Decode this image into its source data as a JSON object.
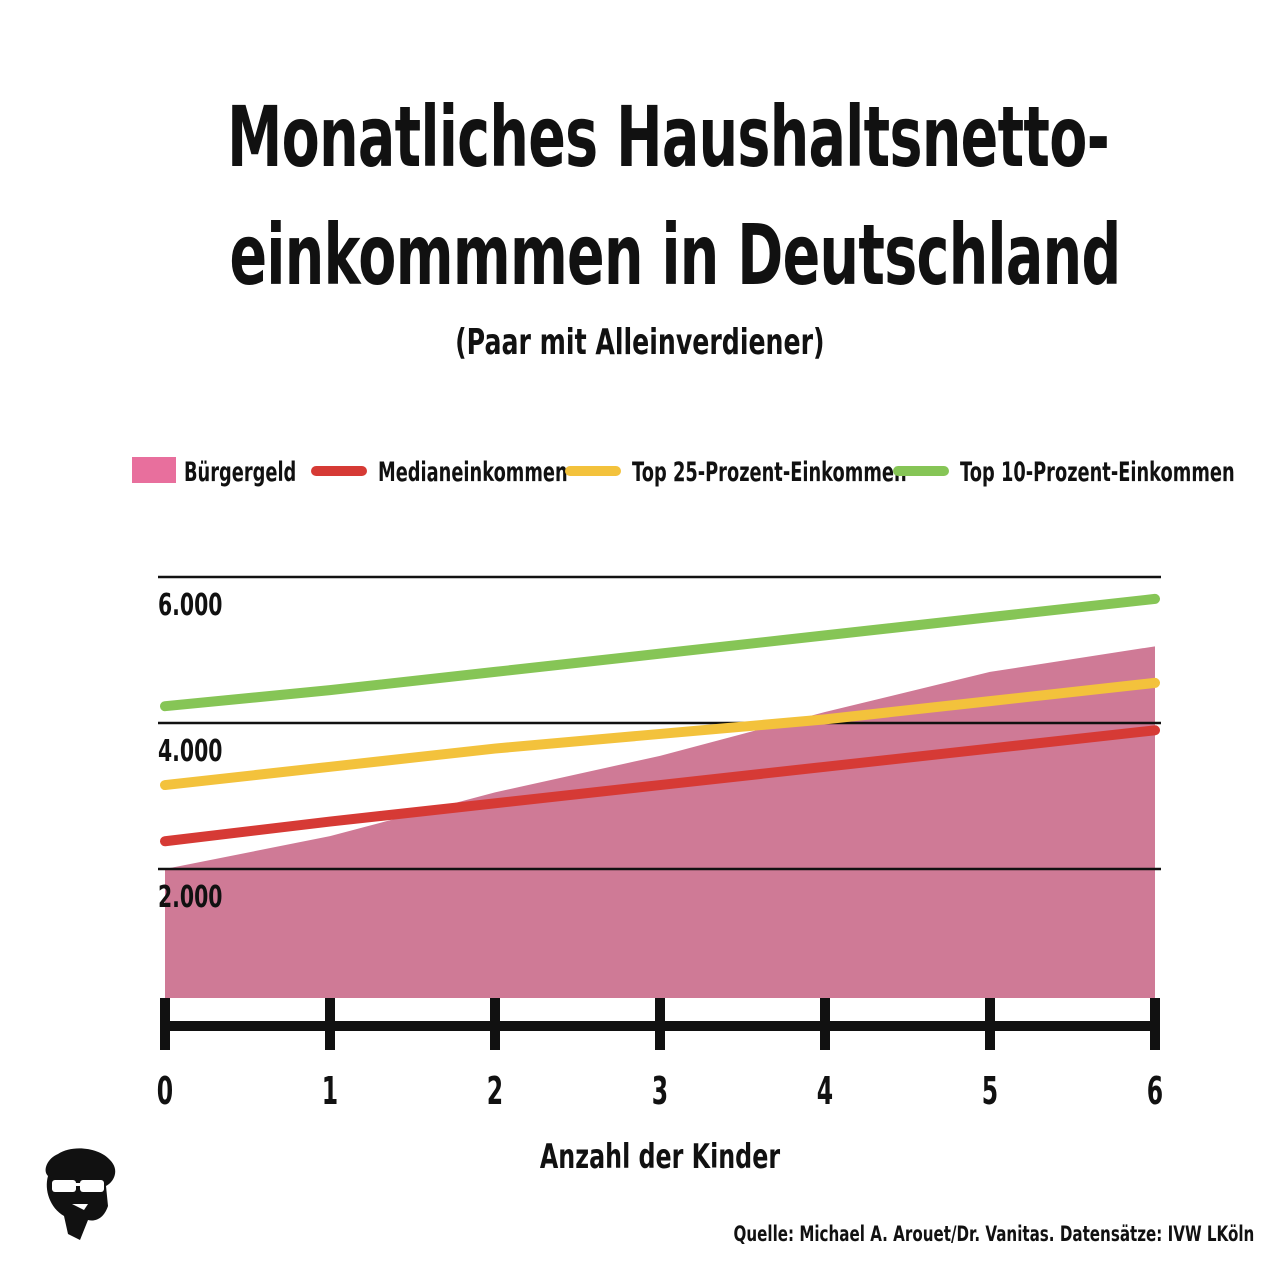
{
  "chart_data": {
    "type": "area",
    "title_lines": [
      "Monatliches Haushaltsnetto-",
      "einkommmen in Deutschland"
    ],
    "subtitle": "(Paar mit Alleinverdiener)",
    "xlabel": "Anzahl der Kinder",
    "x": [
      0,
      1,
      2,
      3,
      4,
      5,
      6
    ],
    "x_tick_labels": [
      "0",
      "1",
      "2",
      "3",
      "4",
      "5",
      "6"
    ],
    "y_gridlines": [
      2000,
      4000,
      6000
    ],
    "y_tick_labels": [
      "2.000",
      "4.000",
      "6.000"
    ],
    "ylim": [
      0,
      6200
    ],
    "grid": true,
    "legend_position": "top",
    "series": [
      {
        "name": "Bürgergeld",
        "kind": "area",
        "color": "#cf7a96",
        "legend_color": "#e86f9d",
        "values": [
          2000,
          2450,
          3050,
          3550,
          4150,
          4700,
          5050
        ]
      },
      {
        "name": "Medianeinkommen",
        "kind": "line",
        "color": "#d63a35",
        "values": [
          2380,
          2650,
          2900,
          3150,
          3400,
          3650,
          3900
        ]
      },
      {
        "name": "Top 25-Prozent-Einkommen",
        "kind": "line",
        "color": "#f3c23c",
        "values": [
          3150,
          3400,
          3650,
          3850,
          4050,
          4300,
          4550
        ]
      },
      {
        "name": "Top 10-Prozent-Einkommen",
        "kind": "line",
        "color": "#86c556",
        "values": [
          4230,
          4450,
          4700,
          4950,
          5200,
          5450,
          5700
        ]
      }
    ]
  },
  "source": "Quelle: Michael A. Arouet/Dr. Vanitas. Datensätze: IVW LKöln",
  "logo_icon": "man-with-sunglasses-icon"
}
